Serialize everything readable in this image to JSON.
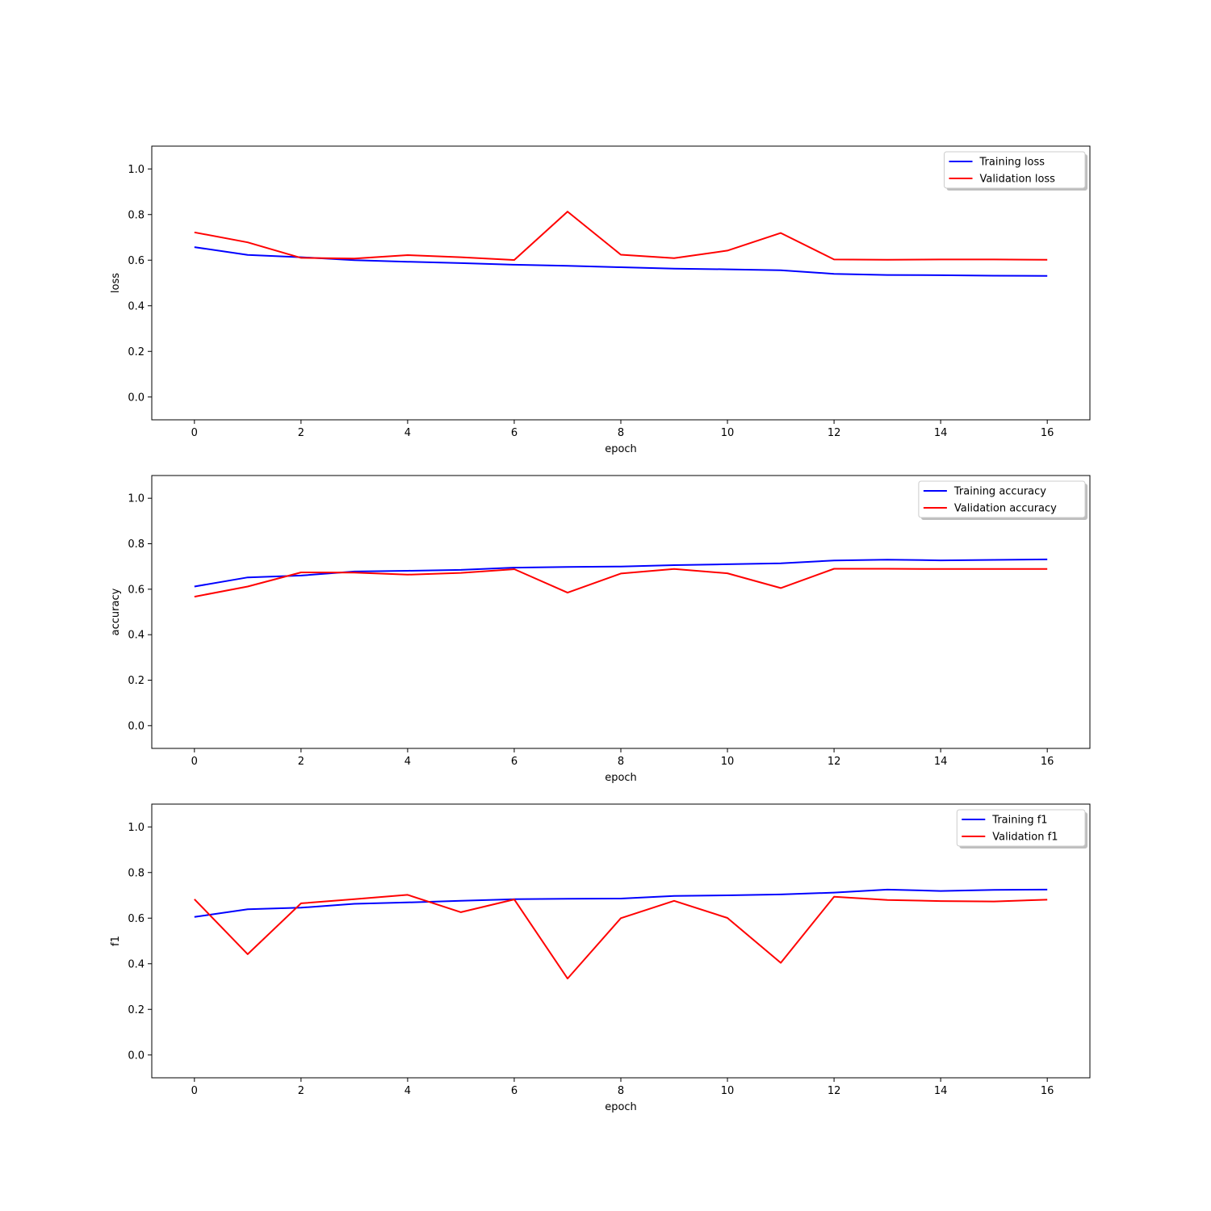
{
  "chart_data": [
    {
      "type": "line",
      "xlabel": "epoch",
      "ylabel": "loss",
      "xlim": [
        -0.8,
        16.8
      ],
      "ylim": [
        -0.1,
        1.1
      ],
      "xticks": [
        0,
        2,
        4,
        6,
        8,
        10,
        12,
        14,
        16
      ],
      "yticks": [
        0.0,
        0.2,
        0.4,
        0.6,
        0.8,
        1.0
      ],
      "grid": false,
      "legend_position": "top-right",
      "x": [
        0,
        1,
        2,
        3,
        4,
        5,
        6,
        7,
        8,
        9,
        10,
        11,
        12,
        13,
        14,
        15,
        16
      ],
      "series": [
        {
          "name": "Training loss",
          "color": "#0000ff",
          "values": [
            0.657,
            0.623,
            0.613,
            0.6,
            0.593,
            0.587,
            0.58,
            0.575,
            0.569,
            0.563,
            0.56,
            0.556,
            0.54,
            0.535,
            0.534,
            0.532,
            0.531
          ]
        },
        {
          "name": "Validation loss",
          "color": "#ff0000",
          "values": [
            0.722,
            0.678,
            0.61,
            0.607,
            0.622,
            0.613,
            0.601,
            0.813,
            0.624,
            0.609,
            0.642,
            0.719,
            0.603,
            0.602,
            0.603,
            0.603,
            0.602
          ]
        }
      ]
    },
    {
      "type": "line",
      "xlabel": "epoch",
      "ylabel": "accuracy",
      "xlim": [
        -0.8,
        16.8
      ],
      "ylim": [
        -0.1,
        1.1
      ],
      "xticks": [
        0,
        2,
        4,
        6,
        8,
        10,
        12,
        14,
        16
      ],
      "yticks": [
        0.0,
        0.2,
        0.4,
        0.6,
        0.8,
        1.0
      ],
      "grid": false,
      "legend_position": "top-right",
      "x": [
        0,
        1,
        2,
        3,
        4,
        5,
        6,
        7,
        8,
        9,
        10,
        11,
        12,
        13,
        14,
        15,
        16
      ],
      "series": [
        {
          "name": "Training accuracy",
          "color": "#0000ff",
          "values": [
            0.612,
            0.652,
            0.66,
            0.678,
            0.681,
            0.685,
            0.695,
            0.698,
            0.7,
            0.706,
            0.71,
            0.714,
            0.726,
            0.73,
            0.727,
            0.729,
            0.731
          ]
        },
        {
          "name": "Validation accuracy",
          "color": "#ff0000",
          "values": [
            0.567,
            0.612,
            0.674,
            0.673,
            0.664,
            0.672,
            0.688,
            0.585,
            0.669,
            0.689,
            0.67,
            0.605,
            0.69,
            0.69,
            0.689,
            0.689,
            0.689
          ]
        }
      ]
    },
    {
      "type": "line",
      "xlabel": "epoch",
      "ylabel": "f1",
      "xlim": [
        -0.8,
        16.8
      ],
      "ylim": [
        -0.1,
        1.1
      ],
      "xticks": [
        0,
        2,
        4,
        6,
        8,
        10,
        12,
        14,
        16
      ],
      "yticks": [
        0.0,
        0.2,
        0.4,
        0.6,
        0.8,
        1.0
      ],
      "grid": false,
      "legend_position": "top-right",
      "x": [
        0,
        1,
        2,
        3,
        4,
        5,
        6,
        7,
        8,
        9,
        10,
        11,
        12,
        13,
        14,
        15,
        16
      ],
      "series": [
        {
          "name": "Training f1",
          "color": "#0000ff",
          "values": [
            0.605,
            0.639,
            0.646,
            0.663,
            0.669,
            0.676,
            0.683,
            0.685,
            0.686,
            0.697,
            0.7,
            0.704,
            0.712,
            0.725,
            0.719,
            0.724,
            0.725
          ]
        },
        {
          "name": "Validation f1",
          "color": "#ff0000",
          "values": [
            0.683,
            0.442,
            0.665,
            0.683,
            0.702,
            0.626,
            0.682,
            0.335,
            0.6,
            0.676,
            0.601,
            0.404,
            0.694,
            0.68,
            0.675,
            0.673,
            0.681
          ]
        }
      ]
    }
  ]
}
